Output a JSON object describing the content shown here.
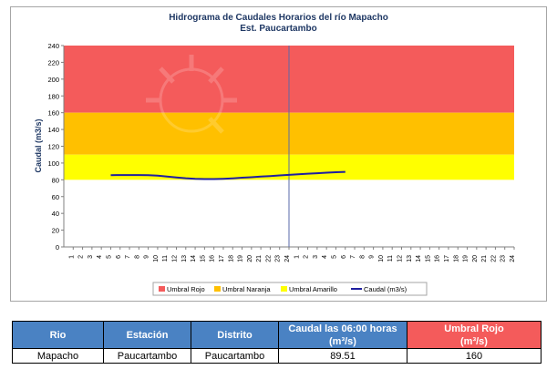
{
  "chart_data": {
    "type": "line",
    "title": "Hidrograma de Caudales Horarios del río Mapacho",
    "subtitle": "Est. Paucartambo",
    "ylabel": "Caudal (m3/s)",
    "xlabel": "",
    "ylim": [
      0,
      240
    ],
    "yticks": [
      0,
      20,
      40,
      60,
      80,
      100,
      120,
      140,
      160,
      180,
      200,
      220,
      240
    ],
    "x_categories": [
      "1",
      "2",
      "3",
      "4",
      "5",
      "6",
      "7",
      "8",
      "9",
      "10",
      "11",
      "12",
      "13",
      "14",
      "15",
      "16",
      "17",
      "18",
      "19",
      "20",
      "21",
      "22",
      "23",
      "24",
      "1",
      "2",
      "3",
      "4",
      "5",
      "6",
      "7",
      "8",
      "9",
      "10",
      "11",
      "12",
      "13",
      "14",
      "15",
      "16",
      "17",
      "18",
      "19",
      "20",
      "21",
      "22",
      "23",
      "24"
    ],
    "thresholds": [
      {
        "name": "Umbral Rojo",
        "from": 160,
        "to": 240,
        "color": "#f45b5b"
      },
      {
        "name": "Umbral Naranja",
        "from": 110,
        "to": 160,
        "color": "#ffc000"
      },
      {
        "name": "Umbral Amarillo",
        "from": 80,
        "to": 110,
        "color": "#ffff00"
      }
    ],
    "series": [
      {
        "name": "Caudal (m3/s)",
        "color": "#1f1fa0",
        "x_index": [
          5,
          6,
          7,
          8,
          9,
          10,
          11,
          12,
          13,
          14,
          15,
          16,
          17,
          18,
          19,
          20,
          21,
          22,
          23,
          24,
          25,
          26,
          27,
          28,
          29,
          30
        ],
        "values": [
          85.6,
          85.7,
          85.7,
          85.7,
          85.6,
          84.9,
          84.0,
          82.9,
          81.9,
          81.2,
          80.9,
          80.9,
          81.2,
          81.8,
          82.5,
          83.1,
          83.8,
          84.5,
          85.2,
          85.9,
          86.6,
          87.3,
          87.9,
          88.5,
          89.0,
          89.51
        ]
      }
    ],
    "vertical_marker_x_index": 24,
    "legend_position": "bottom",
    "grid": false
  },
  "table": {
    "headers": [
      "Rio",
      "Estación",
      "Distrito",
      "Caudal las 06:00 horas",
      "Umbral Rojo"
    ],
    "header_units": [
      "",
      "",
      "",
      "(m³/s)",
      "(m³/s)"
    ],
    "row": [
      "Mapacho",
      "Paucartambo",
      "Paucartambo",
      "89.51",
      "160"
    ]
  }
}
